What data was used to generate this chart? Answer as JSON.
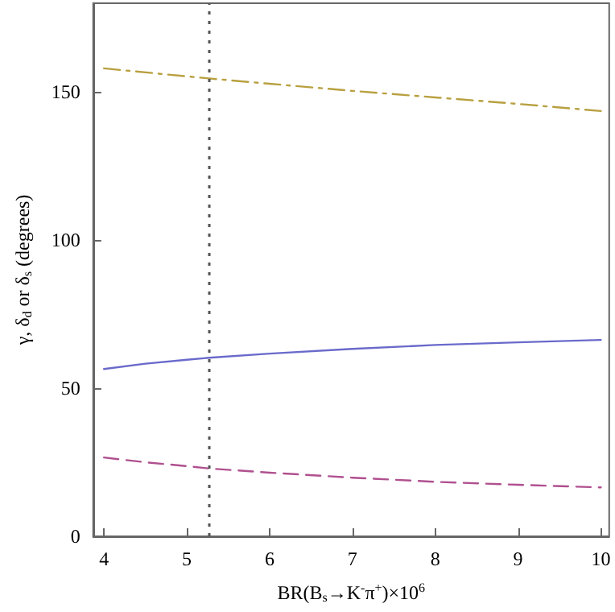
{
  "chart_data": {
    "type": "line",
    "xlabel": "BR(B$_{s}$→K$^{-}$π$^{+}$)×10$^{6}$",
    "ylabel": "γ, δ$_{d}$ or δ$_{s}$ (degrees)",
    "xlim": [
      3.87,
      10.1
    ],
    "ylim": [
      0,
      180
    ],
    "xticks": [
      4,
      5,
      6,
      7,
      8,
      9,
      10
    ],
    "yticks": [
      0,
      50,
      100,
      150
    ],
    "grid": false,
    "marker": "none",
    "series": [
      {
        "color": "#6a6acb",
        "line_style": "solid",
        "x": [
          4,
          4.5,
          5,
          5.27,
          6,
          7,
          8,
          9,
          10
        ],
        "values": [
          56.5,
          58.3,
          59.6,
          60.3,
          61.7,
          63.3,
          64.6,
          65.5,
          66.3
        ]
      },
      {
        "color": "#b0508f",
        "line_style": "dashed",
        "x": [
          4,
          4.5,
          5,
          5.27,
          6,
          7,
          8,
          9,
          10
        ],
        "values": [
          26.6,
          25,
          23.7,
          22.9,
          21.5,
          19.8,
          18.4,
          17.4,
          16.5
        ]
      },
      {
        "color": "#b8a040",
        "line_style": "dashdot",
        "x": [
          4,
          5,
          5.27,
          6,
          7,
          8,
          9,
          10
        ],
        "values": [
          158,
          155.3,
          154.6,
          152.8,
          150.4,
          148.2,
          146,
          143.6
        ]
      }
    ],
    "ref_lines": [
      {
        "axis": "x",
        "value": 5.27,
        "color": "#555555",
        "line_style": "dotted"
      }
    ]
  }
}
